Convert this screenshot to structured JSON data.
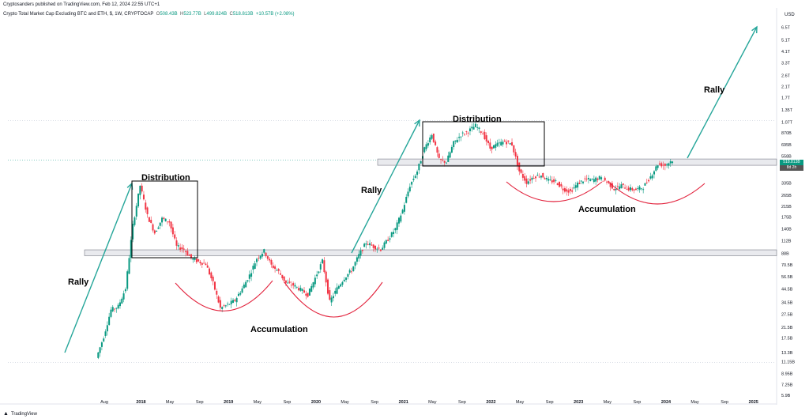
{
  "header": {
    "publisher": "Cryptosanders published on TradingView.com, Feb 12, 2024 22:55 UTC+1",
    "symbol": "Crypto Total Market Cap Excluding BTC and ETH, $, 1W, CRYPTOCAP",
    "open_label": "O",
    "open": "508.43B",
    "high_label": "H",
    "high": "523.77B",
    "low_label": "L",
    "low": "499.824B",
    "close_label": "C",
    "close": "518.813B",
    "change": "+10.57B (+2.08%)"
  },
  "footer": {
    "brand": "TradingView"
  },
  "axis": {
    "currency": "USD"
  },
  "price_tags": {
    "last": "518.813B",
    "secondary": "8d 2h"
  },
  "annotations": {
    "rally_1": "Rally",
    "rally_2": "Rally",
    "rally_3": "Rally",
    "distribution_1": "Distribution",
    "distribution_2": "Distribution",
    "accumulation_1": "Accumulation",
    "accumulation_2": "Accumulation"
  },
  "colors": {
    "up": "#089981",
    "down": "#f23645",
    "arrow": "#26a69a",
    "arc": "#e2233d",
    "zone": "#d1d4dc"
  },
  "chart_data": {
    "type": "line",
    "title": "Crypto Total Market Cap Excluding BTC and ETH, $, 1W, CRYPTOCAP",
    "xlabel": "",
    "ylabel": "",
    "y_scale": "log",
    "y_ticks": [
      "6.5T",
      "5.1T",
      "4.1T",
      "3.3T",
      "2.6T",
      "2.1T",
      "1.7T",
      "1.35T",
      "1.07T",
      "870B",
      "695B",
      "558B",
      "435B",
      "335B",
      "265B",
      "215B",
      "175B",
      "140B",
      "112B",
      "88B",
      "70.5B",
      "56.5B",
      "44.5B",
      "34.5B",
      "27.5B",
      "21.5B",
      "17.5B",
      "13.3B",
      "11.15B",
      "8.95B",
      "7.25B",
      "5.9B"
    ],
    "x_ticks": [
      "Aug",
      "2018",
      "May",
      "Sep",
      "2019",
      "May",
      "Sep",
      "2020",
      "May",
      "Sep",
      "2021",
      "May",
      "Sep",
      "2022",
      "May",
      "Sep",
      "2023",
      "May",
      "Sep",
      "2024",
      "May",
      "Sep",
      "2025"
    ],
    "series": [
      {
        "values": [
          {
            "x": "2017-07",
            "y": 12
          },
          {
            "x": "2017-08",
            "y": 18
          },
          {
            "x": "2017-09",
            "y": 30
          },
          {
            "x": "2017-10",
            "y": 32
          },
          {
            "x": "2017-11",
            "y": 45
          },
          {
            "x": "2017-12",
            "y": 150
          },
          {
            "x": "2018-01",
            "y": 320
          },
          {
            "x": "2018-02",
            "y": 180
          },
          {
            "x": "2018-03",
            "y": 130
          },
          {
            "x": "2018-04",
            "y": 170
          },
          {
            "x": "2018-05",
            "y": 160
          },
          {
            "x": "2018-06",
            "y": 100
          },
          {
            "x": "2018-07",
            "y": 95
          },
          {
            "x": "2018-08",
            "y": 80
          },
          {
            "x": "2018-09",
            "y": 75
          },
          {
            "x": "2018-10",
            "y": 72
          },
          {
            "x": "2018-11",
            "y": 50
          },
          {
            "x": "2018-12",
            "y": 31
          },
          {
            "x": "2019-01",
            "y": 33
          },
          {
            "x": "2019-02",
            "y": 36
          },
          {
            "x": "2019-03",
            "y": 45
          },
          {
            "x": "2019-04",
            "y": 58
          },
          {
            "x": "2019-05",
            "y": 80
          },
          {
            "x": "2019-06",
            "y": 92
          },
          {
            "x": "2019-07",
            "y": 70
          },
          {
            "x": "2019-08",
            "y": 62
          },
          {
            "x": "2019-09",
            "y": 50
          },
          {
            "x": "2019-10",
            "y": 48
          },
          {
            "x": "2019-11",
            "y": 44
          },
          {
            "x": "2019-12",
            "y": 40
          },
          {
            "x": "2020-01",
            "y": 55
          },
          {
            "x": "2020-02",
            "y": 76
          },
          {
            "x": "2020-03",
            "y": 35
          },
          {
            "x": "2020-04",
            "y": 45
          },
          {
            "x": "2020-05",
            "y": 55
          },
          {
            "x": "2020-06",
            "y": 64
          },
          {
            "x": "2020-07",
            "y": 85
          },
          {
            "x": "2020-08",
            "y": 108
          },
          {
            "x": "2020-09",
            "y": 100
          },
          {
            "x": "2020-10",
            "y": 95
          },
          {
            "x": "2020-11",
            "y": 115
          },
          {
            "x": "2020-12",
            "y": 140
          },
          {
            "x": "2021-01",
            "y": 200
          },
          {
            "x": "2021-02",
            "y": 320
          },
          {
            "x": "2021-03",
            "y": 420
          },
          {
            "x": "2021-04",
            "y": 650
          },
          {
            "x": "2021-05",
            "y": 850
          },
          {
            "x": "2021-06",
            "y": 520
          },
          {
            "x": "2021-07",
            "y": 500
          },
          {
            "x": "2021-08",
            "y": 720
          },
          {
            "x": "2021-09",
            "y": 840
          },
          {
            "x": "2021-10",
            "y": 900
          },
          {
            "x": "2021-11",
            "y": 1000
          },
          {
            "x": "2021-12",
            "y": 860
          },
          {
            "x": "2022-01",
            "y": 650
          },
          {
            "x": "2022-02",
            "y": 700
          },
          {
            "x": "2022-03",
            "y": 740
          },
          {
            "x": "2022-04",
            "y": 700
          },
          {
            "x": "2022-05",
            "y": 420
          },
          {
            "x": "2022-06",
            "y": 340
          },
          {
            "x": "2022-07",
            "y": 380
          },
          {
            "x": "2022-08",
            "y": 390
          },
          {
            "x": "2022-09",
            "y": 350
          },
          {
            "x": "2022-10",
            "y": 345
          },
          {
            "x": "2022-11",
            "y": 300
          },
          {
            "x": "2022-12",
            "y": 285
          },
          {
            "x": "2023-01",
            "y": 330
          },
          {
            "x": "2023-02",
            "y": 360
          },
          {
            "x": "2023-03",
            "y": 355
          },
          {
            "x": "2023-04",
            "y": 370
          },
          {
            "x": "2023-05",
            "y": 345
          },
          {
            "x": "2023-06",
            "y": 300
          },
          {
            "x": "2023-07",
            "y": 320
          },
          {
            "x": "2023-08",
            "y": 300
          },
          {
            "x": "2023-09",
            "y": 295
          },
          {
            "x": "2023-10",
            "y": 310
          },
          {
            "x": "2023-11",
            "y": 380
          },
          {
            "x": "2023-12",
            "y": 480
          },
          {
            "x": "2024-01",
            "y": 470
          },
          {
            "x": "2024-02",
            "y": 518.813
          }
        ]
      }
    ],
    "zones": [
      {
        "from": 84,
        "to": 94
      },
      {
        "from": 470,
        "to": 530
      }
    ],
    "ylim": [
      5.9,
      6500
    ]
  }
}
